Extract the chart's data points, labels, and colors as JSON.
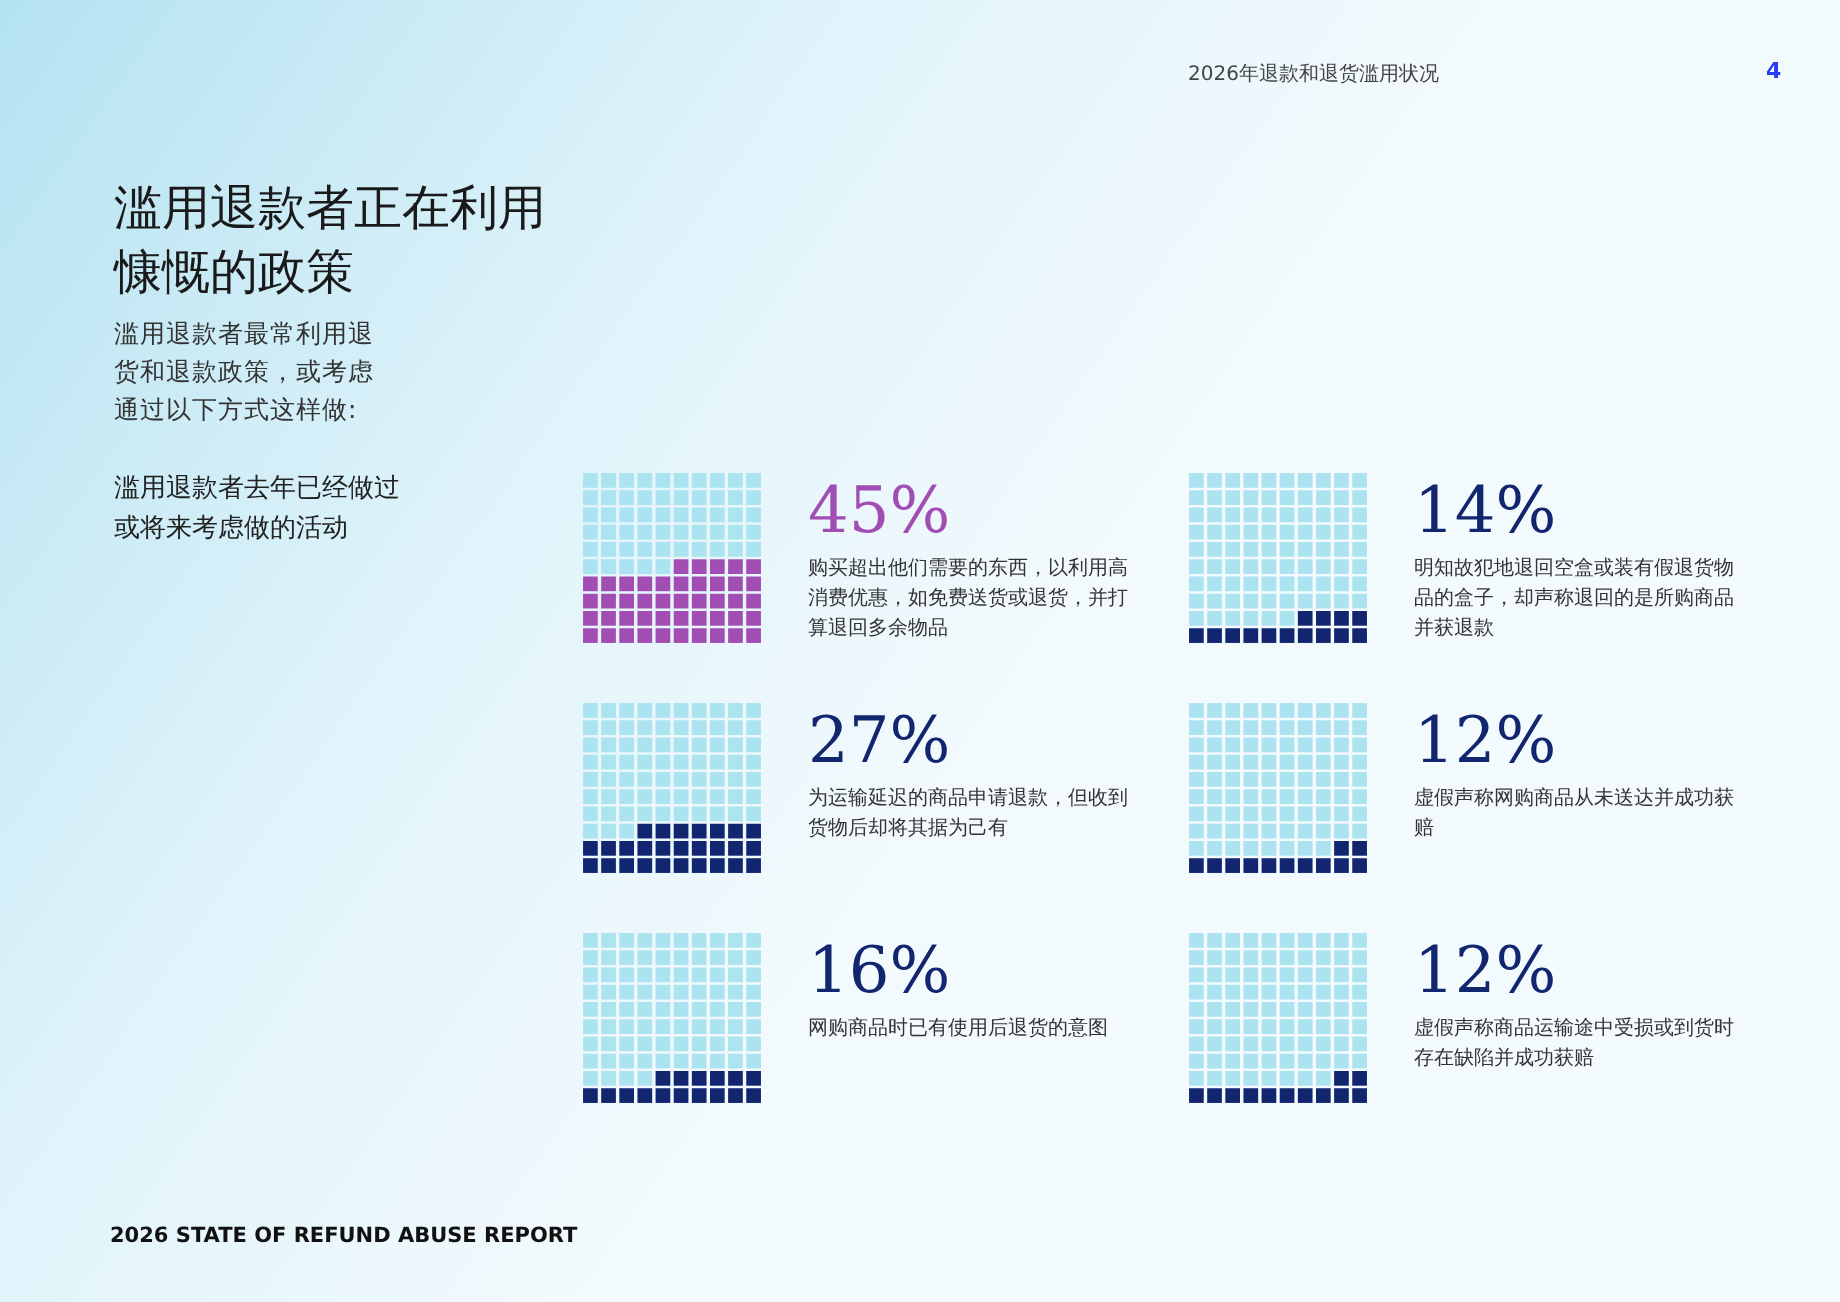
{
  "chart_data": {
    "type": "other",
    "title": "滥用退款者正在利用慷慨的政策",
    "subtitle": "滥用退款者最常利用退货和退款政策，或考虑通过以下方式这样做:",
    "annotations": [
      "滥用退款者去年已经做过或将来考虑做的活动",
      "2026年退款和退货滥用状况",
      "4",
      "2026 STATE OF REFUND ABUSE REPORT"
    ],
    "categories": [
      "购买超出他们需要的东西，以利用高消费优惠，如免费送货或退货，并打算退回多余物品",
      "明知故犯地退回空盒或装有假退货物品的盒子，却声称退回的是所购商品并获退款",
      "为运输延迟的商品申请退款，但收到货物后却将其据为己有",
      "虚假声称网购商品从未送达并成功获赔",
      "网购商品时已有使用后退货的意图",
      "虚假声称商品运输途中受损或到货时存在缺陷并成功获赔"
    ],
    "values": [
      45,
      14,
      27,
      12,
      16,
      12
    ],
    "value_labels": [
      "45%",
      "14%",
      "27%",
      "12%",
      "16%",
      "12%"
    ],
    "colors": [
      "#a24db3",
      "#122670",
      "#122670",
      "#122670",
      "#122670",
      "#122670"
    ]
  }
}
